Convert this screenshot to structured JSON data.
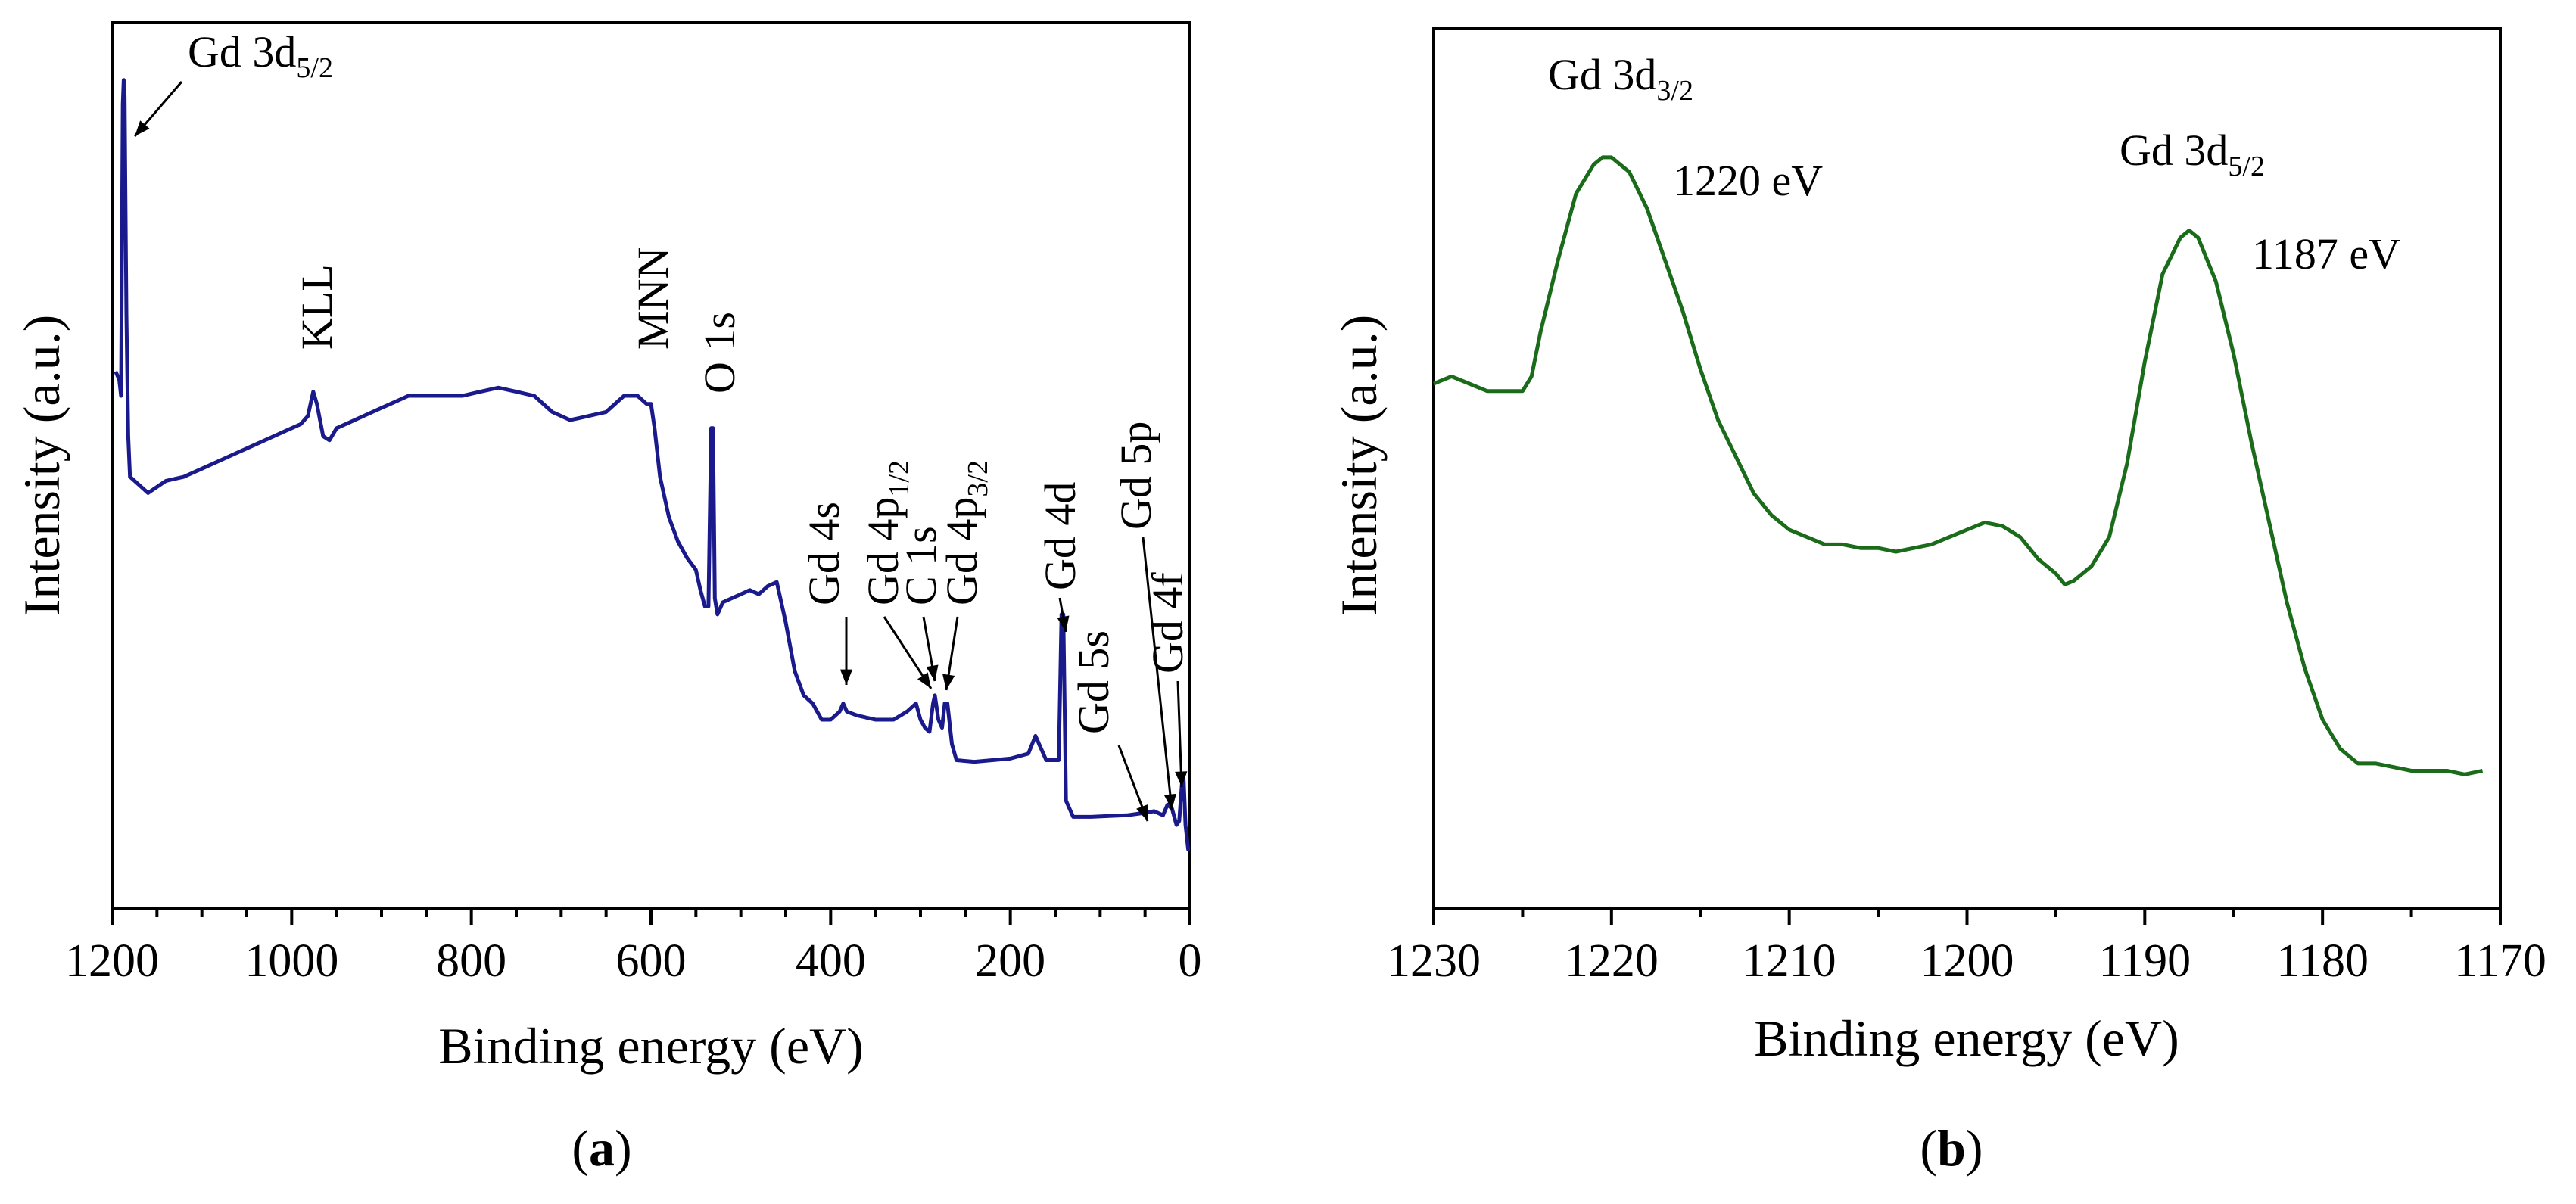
{
  "chart_data": [
    {
      "panel": "a",
      "type": "line",
      "panel_label": {
        "open": "(",
        "letter": "a",
        "close": ")"
      },
      "xlabel": "Binding energy (eV)",
      "ylabel": "Intensity (a.u.)",
      "xlim": [
        1200,
        0
      ],
      "x_reversed": true,
      "y_ticks_shown": false,
      "x_ticks": [
        1200,
        1000,
        800,
        600,
        400,
        200,
        0
      ],
      "x_tick_labels": [
        "1200",
        "1000",
        "800",
        "600",
        "400",
        "200",
        "0"
      ],
      "color": "#1a1a8c",
      "series": [
        {
          "points": [
            [
              1196,
              0.63
            ],
            [
              1192,
              0.62
            ],
            [
              1190,
              0.6
            ],
            [
              1188,
              0.96
            ],
            [
              1187,
              0.99
            ],
            [
              1186,
              0.97
            ],
            [
              1184,
              0.7
            ],
            [
              1182,
              0.55
            ],
            [
              1180,
              0.5
            ],
            [
              1170,
              0.49
            ],
            [
              1160,
              0.48
            ],
            [
              1140,
              0.495
            ],
            [
              1120,
              0.5
            ],
            [
              1100,
              0.51
            ],
            [
              1080,
              0.52
            ],
            [
              1060,
              0.53
            ],
            [
              1040,
              0.54
            ],
            [
              1020,
              0.55
            ],
            [
              1000,
              0.56
            ],
            [
              990,
              0.565
            ],
            [
              982,
              0.575
            ],
            [
              976,
              0.605
            ],
            [
              972,
              0.59
            ],
            [
              965,
              0.55
            ],
            [
              958,
              0.545
            ],
            [
              950,
              0.56
            ],
            [
              930,
              0.57
            ],
            [
              910,
              0.58
            ],
            [
              890,
              0.59
            ],
            [
              870,
              0.6
            ],
            [
              850,
              0.6
            ],
            [
              830,
              0.6
            ],
            [
              810,
              0.6
            ],
            [
              790,
              0.605
            ],
            [
              770,
              0.61
            ],
            [
              750,
              0.605
            ],
            [
              730,
              0.6
            ],
            [
              710,
              0.58
            ],
            [
              690,
              0.57
            ],
            [
              670,
              0.575
            ],
            [
              650,
              0.58
            ],
            [
              630,
              0.6
            ],
            [
              615,
              0.6
            ],
            [
              605,
              0.59
            ],
            [
              600,
              0.59
            ],
            [
              596,
              0.56
            ],
            [
              590,
              0.5
            ],
            [
              580,
              0.45
            ],
            [
              570,
              0.42
            ],
            [
              560,
              0.4
            ],
            [
              550,
              0.385
            ],
            [
              545,
              0.36
            ],
            [
              540,
              0.34
            ],
            [
              536,
              0.34
            ],
            [
              533,
              0.56
            ],
            [
              531,
              0.56
            ],
            [
              529,
              0.35
            ],
            [
              526,
              0.33
            ],
            [
              520,
              0.345
            ],
            [
              510,
              0.35
            ],
            [
              500,
              0.355
            ],
            [
              490,
              0.36
            ],
            [
              480,
              0.355
            ],
            [
              470,
              0.365
            ],
            [
              460,
              0.37
            ],
            [
              450,
              0.32
            ],
            [
              440,
              0.26
            ],
            [
              430,
              0.23
            ],
            [
              420,
              0.22
            ],
            [
              410,
              0.2
            ],
            [
              400,
              0.2
            ],
            [
              390,
              0.21
            ],
            [
              386,
              0.22
            ],
            [
              382,
              0.21
            ],
            [
              370,
              0.205
            ],
            [
              350,
              0.2
            ],
            [
              330,
              0.2
            ],
            [
              315,
              0.21
            ],
            [
              305,
              0.22
            ],
            [
              300,
              0.2
            ],
            [
              295,
              0.19
            ],
            [
              290,
              0.185
            ],
            [
              286,
              0.22
            ],
            [
              284,
              0.23
            ],
            [
              280,
              0.2
            ],
            [
              276,
              0.19
            ],
            [
              273,
              0.22
            ],
            [
              270,
              0.22
            ],
            [
              265,
              0.17
            ],
            [
              260,
              0.15
            ],
            [
              240,
              0.148
            ],
            [
              220,
              0.15
            ],
            [
              200,
              0.152
            ],
            [
              180,
              0.158
            ],
            [
              172,
              0.18
            ],
            [
              166,
              0.165
            ],
            [
              160,
              0.15
            ],
            [
              150,
              0.15
            ],
            [
              146,
              0.15
            ],
            [
              143,
              0.33
            ],
            [
              141,
              0.33
            ],
            [
              138,
              0.1
            ],
            [
              130,
              0.08
            ],
            [
              110,
              0.08
            ],
            [
              90,
              0.081
            ],
            [
              70,
              0.082
            ],
            [
              50,
              0.085
            ],
            [
              40,
              0.087
            ],
            [
              30,
              0.082
            ],
            [
              25,
              0.095
            ],
            [
              20,
              0.09
            ],
            [
              15,
              0.07
            ],
            [
              12,
              0.075
            ],
            [
              9,
              0.12
            ],
            [
              7,
              0.125
            ],
            [
              5,
              0.07
            ],
            [
              2,
              0.04
            ],
            [
              0,
              0.04
            ]
          ]
        }
      ],
      "annotations": [
        {
          "text": "Gd 3d",
          "sub": "5/2",
          "x": 1187
        },
        {
          "text": "KLL",
          "x": 976
        },
        {
          "text": "MNN",
          "x": 605
        },
        {
          "text": "O 1s",
          "x": 531
        },
        {
          "text": "Gd 4s",
          "x": 386
        },
        {
          "text": "Gd 4p",
          "sub": "1/2",
          "x": 305
        },
        {
          "text": "C 1s",
          "x": 285
        },
        {
          "text": "Gd 4p",
          "sub": "3/2",
          "x": 272
        },
        {
          "text": "Gd 4d",
          "x": 142
        },
        {
          "text": "Gd 5s",
          "x": 45
        },
        {
          "text": "Gd 5p",
          "x": 25
        },
        {
          "text": "Gd 4f",
          "x": 8
        }
      ]
    },
    {
      "panel": "b",
      "type": "line",
      "panel_label": {
        "open": "(",
        "letter": "b",
        "close": ")"
      },
      "xlabel": "Binding energy (eV)",
      "ylabel": "Intensity (a.u.)",
      "xlim": [
        1230,
        1170
      ],
      "x_reversed": true,
      "y_ticks_shown": false,
      "x_ticks": [
        1230,
        1220,
        1210,
        1200,
        1190,
        1180,
        1170
      ],
      "x_tick_labels": [
        "1230",
        "1220",
        "1210",
        "1200",
        "1190",
        "1180",
        "1170"
      ],
      "color": "#1a6b1a",
      "series": [
        {
          "points": [
            [
              1230,
              0.63
            ],
            [
              1229,
              0.64
            ],
            [
              1228,
              0.63
            ],
            [
              1227,
              0.62
            ],
            [
              1226,
              0.62
            ],
            [
              1225,
              0.62
            ],
            [
              1224.5,
              0.64
            ],
            [
              1224,
              0.7
            ],
            [
              1223,
              0.8
            ],
            [
              1222,
              0.89
            ],
            [
              1221,
              0.93
            ],
            [
              1220.5,
              0.94
            ],
            [
              1220,
              0.94
            ],
            [
              1219,
              0.92
            ],
            [
              1218,
              0.87
            ],
            [
              1217,
              0.8
            ],
            [
              1216,
              0.73
            ],
            [
              1215,
              0.65
            ],
            [
              1214,
              0.58
            ],
            [
              1213,
              0.53
            ],
            [
              1212,
              0.48
            ],
            [
              1211,
              0.45
            ],
            [
              1210,
              0.43
            ],
            [
              1209,
              0.42
            ],
            [
              1208,
              0.41
            ],
            [
              1207,
              0.41
            ],
            [
              1206,
              0.405
            ],
            [
              1205,
              0.405
            ],
            [
              1204,
              0.4
            ],
            [
              1203,
              0.405
            ],
            [
              1202,
              0.41
            ],
            [
              1201,
              0.42
            ],
            [
              1200,
              0.43
            ],
            [
              1199,
              0.44
            ],
            [
              1198,
              0.435
            ],
            [
              1197,
              0.42
            ],
            [
              1196,
              0.39
            ],
            [
              1195,
              0.37
            ],
            [
              1194.5,
              0.355
            ],
            [
              1194,
              0.36
            ],
            [
              1193,
              0.38
            ],
            [
              1192,
              0.42
            ],
            [
              1191,
              0.52
            ],
            [
              1190,
              0.66
            ],
            [
              1189,
              0.78
            ],
            [
              1188,
              0.83
            ],
            [
              1187.5,
              0.84
            ],
            [
              1187,
              0.83
            ],
            [
              1186,
              0.77
            ],
            [
              1185,
              0.67
            ],
            [
              1184,
              0.55
            ],
            [
              1183,
              0.44
            ],
            [
              1182,
              0.33
            ],
            [
              1181,
              0.24
            ],
            [
              1180,
              0.17
            ],
            [
              1179,
              0.13
            ],
            [
              1178,
              0.11
            ],
            [
              1177,
              0.11
            ],
            [
              1176,
              0.105
            ],
            [
              1175,
              0.1
            ],
            [
              1174,
              0.1
            ],
            [
              1173,
              0.1
            ],
            [
              1172,
              0.095
            ],
            [
              1171,
              0.1
            ]
          ]
        }
      ],
      "annotations": [
        {
          "text": "Gd 3d",
          "sub": "3/2",
          "value_text": "1220 eV",
          "x": 1220
        },
        {
          "text": "Gd 3d",
          "sub": "5/2",
          "value_text": "1187 eV",
          "x": 1187.5
        }
      ]
    }
  ]
}
